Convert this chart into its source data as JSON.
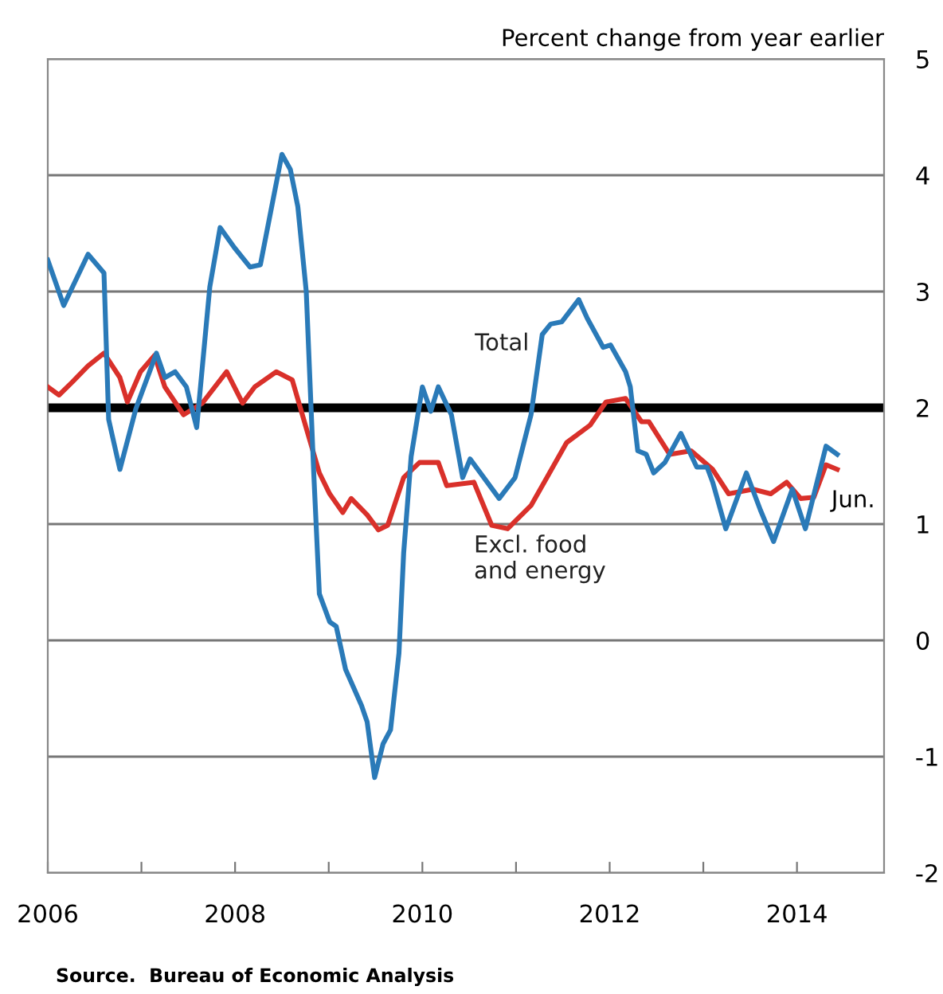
{
  "chart_data": {
    "type": "line",
    "ylabel": "Percent change from year earlier",
    "annotations": [
      "Jun.",
      "Source.  Bureau of Economic Analysis"
    ],
    "xlim": [
      2006,
      2014.93
    ],
    "ylim": [
      -2,
      5
    ],
    "yticks": [
      -2,
      -1,
      0,
      1,
      2,
      3,
      4,
      5
    ],
    "xticks": [
      2006,
      {
        "value": 2007,
        "label": null
      },
      2008,
      {
        "value": 2009,
        "label": null
      },
      2010,
      {
        "value": 2011,
        "label": null
      },
      2012,
      {
        "value": 2013,
        "label": null
      },
      2014
    ],
    "grid": "y",
    "legend": false,
    "line_style": "solid",
    "marker": "none",
    "ref_lines": [
      {
        "axis": "y",
        "value": 2,
        "color": "#000000"
      }
    ],
    "series": [
      {
        "name": "Total",
        "color": "#2a7ab8",
        "x": [
          2006.0,
          2006.17,
          2006.43,
          2006.6,
          2006.65,
          2006.77,
          2006.94,
          2007.16,
          2007.25,
          2007.36,
          2007.48,
          2007.59,
          2007.73,
          2007.84,
          2007.99,
          2008.16,
          2008.27,
          2008.5,
          2008.59,
          2008.67,
          2008.76,
          2008.84,
          2008.9,
          2009.01,
          2009.08,
          2009.18,
          2009.35,
          2009.41,
          2009.49,
          2009.58,
          2009.66,
          2009.75,
          2009.8,
          2009.88,
          2010.0,
          2010.09,
          2010.17,
          2010.31,
          2010.43,
          2010.51,
          2010.82,
          2010.99,
          2011.16,
          2011.28,
          2011.37,
          2011.49,
          2011.67,
          2011.76,
          2011.93,
          2012.01,
          2012.17,
          2012.22,
          2012.3,
          2012.39,
          2012.47,
          2012.59,
          2012.76,
          2012.93,
          2013.04,
          2013.1,
          2013.24,
          2013.46,
          2013.61,
          2013.75,
          2013.95,
          2014.09,
          2014.31,
          2014.43
        ],
        "values": [
          3.27,
          2.88,
          3.32,
          3.16,
          1.9,
          1.47,
          1.99,
          2.47,
          2.26,
          2.31,
          2.18,
          1.83,
          3.04,
          3.55,
          3.38,
          3.21,
          3.23,
          4.18,
          4.05,
          3.73,
          3.0,
          1.44,
          0.4,
          0.16,
          0.12,
          -0.25,
          -0.56,
          -0.7,
          -1.18,
          -0.89,
          -0.77,
          -0.11,
          0.75,
          1.58,
          2.18,
          1.97,
          2.18,
          1.94,
          1.4,
          1.56,
          1.22,
          1.4,
          1.94,
          2.63,
          2.72,
          2.74,
          2.93,
          2.77,
          2.52,
          2.54,
          2.31,
          2.18,
          1.63,
          1.6,
          1.44,
          1.53,
          1.78,
          1.49,
          1.49,
          1.36,
          0.96,
          1.44,
          1.12,
          0.85,
          1.3,
          0.96,
          1.67,
          1.6
        ]
      },
      {
        "name": "Excl. food\nand energy",
        "color": "#d9302a",
        "x": [
          2006.0,
          2006.12,
          2006.26,
          2006.43,
          2006.6,
          2006.77,
          2006.85,
          2006.99,
          2007.14,
          2007.25,
          2007.45,
          2007.65,
          2007.91,
          2008.08,
          2008.21,
          2008.44,
          2008.61,
          2008.78,
          2008.9,
          2009.01,
          2009.15,
          2009.24,
          2009.41,
          2009.53,
          2009.63,
          2009.8,
          2009.97,
          2010.17,
          2010.26,
          2010.55,
          2010.74,
          2010.91,
          2011.16,
          2011.33,
          2011.54,
          2011.79,
          2011.96,
          2012.17,
          2012.34,
          2012.42,
          2012.64,
          2012.87,
          2013.1,
          2013.27,
          2013.53,
          2013.72,
          2013.89,
          2014.04,
          2014.18,
          2014.31,
          2014.43
        ],
        "values": [
          2.18,
          2.11,
          2.22,
          2.36,
          2.47,
          2.26,
          2.05,
          2.31,
          2.45,
          2.18,
          1.94,
          2.04,
          2.31,
          2.04,
          2.18,
          2.31,
          2.24,
          1.77,
          1.44,
          1.26,
          1.1,
          1.22,
          1.08,
          0.95,
          0.99,
          1.4,
          1.53,
          1.53,
          1.33,
          1.36,
          0.99,
          0.96,
          1.16,
          1.4,
          1.7,
          1.85,
          2.05,
          2.08,
          1.88,
          1.88,
          1.6,
          1.63,
          1.47,
          1.26,
          1.3,
          1.26,
          1.36,
          1.22,
          1.23,
          1.51,
          1.47
        ]
      }
    ]
  }
}
